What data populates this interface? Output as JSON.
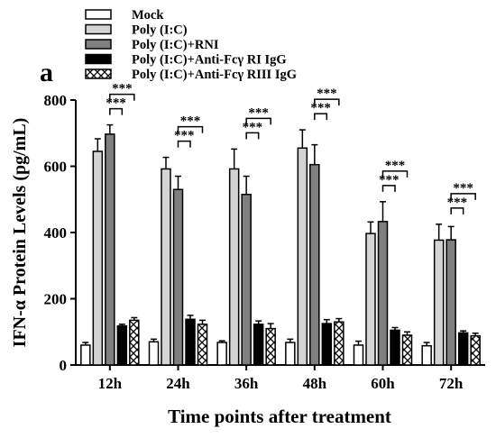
{
  "panel_label": "a",
  "chart_data": {
    "type": "bar",
    "title": "",
    "xlabel": "Time points after treatment",
    "ylabel": "IFN-α Protein Levels (pg/mL)",
    "ylim": [
      0,
      800
    ],
    "yticks": [
      0,
      200,
      400,
      600,
      800
    ],
    "categories": [
      "12h",
      "24h",
      "36h",
      "48h",
      "60h",
      "72h"
    ],
    "legend_position": "top-left",
    "grid": false,
    "significance_label": "***",
    "series": [
      {
        "name": "Mock",
        "fill": "#ffffff",
        "pattern": "none",
        "values": [
          60,
          70,
          68,
          68,
          60,
          58
        ],
        "errors": [
          8,
          8,
          5,
          10,
          12,
          10
        ]
      },
      {
        "name": "Poly (I:C)",
        "fill": "#d4d4d4",
        "pattern": "none",
        "values": [
          645,
          592,
          592,
          655,
          397,
          377
        ],
        "errors": [
          38,
          35,
          60,
          55,
          35,
          48
        ]
      },
      {
        "name": "Poly (I:C)+RNI",
        "fill": "#7f7f7f",
        "pattern": "none",
        "values": [
          697,
          530,
          515,
          605,
          433,
          378
        ],
        "errors": [
          28,
          40,
          55,
          60,
          60,
          40
        ]
      },
      {
        "name": "Poly (I:C)+Anti-Fcγ RI IgG",
        "fill": "#000000",
        "pattern": "none",
        "values": [
          118,
          138,
          123,
          125,
          105,
          97
        ],
        "errors": [
          5,
          12,
          10,
          12,
          8,
          6
        ]
      },
      {
        "name": "Poly (I:C)+Anti-Fcγ RIII IgG",
        "fill": "#ffffff",
        "pattern": "diamond",
        "values": [
          135,
          123,
          110,
          130,
          90,
          88
        ],
        "errors": [
          8,
          12,
          15,
          10,
          10,
          8
        ]
      }
    ],
    "significance": [
      {
        "category": 0,
        "pairs": [
          [
            2,
            3
          ],
          [
            2,
            4
          ]
        ]
      },
      {
        "category": 1,
        "pairs": [
          [
            2,
            3
          ],
          [
            2,
            4
          ]
        ]
      },
      {
        "category": 2,
        "pairs": [
          [
            2,
            3
          ],
          [
            2,
            4
          ]
        ]
      },
      {
        "category": 3,
        "pairs": [
          [
            2,
            3
          ],
          [
            2,
            4
          ]
        ]
      },
      {
        "category": 4,
        "pairs": [
          [
            2,
            3
          ],
          [
            2,
            4
          ]
        ]
      },
      {
        "category": 5,
        "pairs": [
          [
            2,
            3
          ],
          [
            2,
            4
          ]
        ]
      }
    ]
  }
}
